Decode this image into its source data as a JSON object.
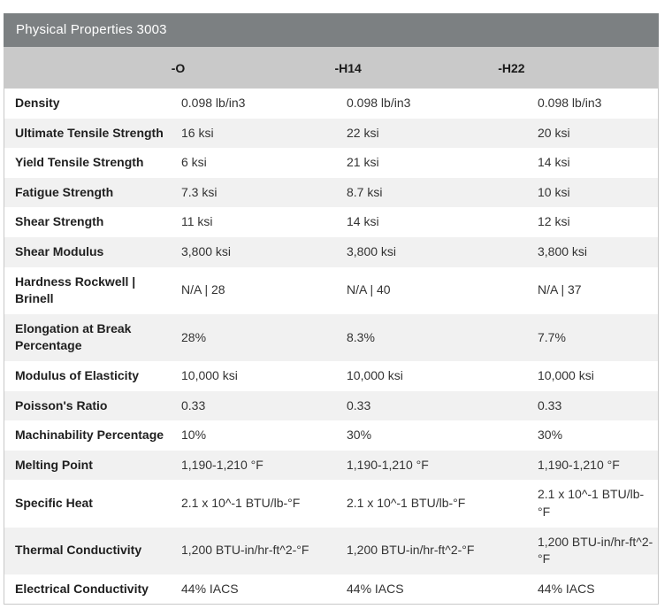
{
  "table": {
    "title": "Physical Properties 3003",
    "columns": [
      "",
      "-O",
      "-H14",
      "-H22"
    ],
    "rows": [
      {
        "label": "Density",
        "values": [
          "0.098 lb/in3",
          "0.098 lb/in3",
          "0.098 lb/in3"
        ]
      },
      {
        "label": "Ultimate Tensile Strength",
        "values": [
          "16 ksi",
          "22 ksi",
          "20 ksi"
        ]
      },
      {
        "label": "Yield Tensile Strength",
        "values": [
          "6 ksi",
          "21 ksi",
          "14 ksi"
        ]
      },
      {
        "label": "Fatigue Strength",
        "values": [
          "7.3 ksi",
          "8.7 ksi",
          "10 ksi"
        ]
      },
      {
        "label": "Shear Strength",
        "values": [
          "11 ksi",
          "14 ksi",
          "12 ksi"
        ]
      },
      {
        "label": "Shear Modulus",
        "values": [
          "3,800 ksi",
          "3,800 ksi",
          "3,800 ksi"
        ]
      },
      {
        "label": "Hardness Rockwell | Brinell",
        "values": [
          "N/A | 28",
          "N/A | 40",
          "N/A | 37"
        ]
      },
      {
        "label": "Elongation at Break Percentage",
        "values": [
          "28%",
          "8.3%",
          "7.7%"
        ]
      },
      {
        "label": "Modulus of Elasticity",
        "values": [
          "10,000 ksi",
          "10,000 ksi",
          "10,000 ksi"
        ]
      },
      {
        "label": "Poisson's Ratio",
        "values": [
          "0.33",
          "0.33",
          "0.33"
        ]
      },
      {
        "label": "Machinability Percentage",
        "values": [
          "10%",
          "30%",
          "30%"
        ]
      },
      {
        "label": "Melting Point",
        "values": [
          "1,190-1,210 °F",
          "1,190-1,210 °F",
          "1,190-1,210 °F"
        ]
      },
      {
        "label": "Specific Heat",
        "values": [
          "2.1 x 10^-1 BTU/lb-°F",
          "2.1 x 10^-1 BTU/lb-°F",
          "2.1 x 10^-1 BTU/lb-°F"
        ]
      },
      {
        "label": "Thermal Conductivity",
        "values": [
          "1,200 BTU-in/hr-ft^2-°F",
          "1,200 BTU-in/hr-ft^2-°F",
          "1,200 BTU-in/hr-ft^2-°F"
        ]
      },
      {
        "label": "Electrical Conductivity",
        "values": [
          "44% IACS",
          "44% IACS",
          "44% IACS"
        ]
      }
    ]
  },
  "colors": {
    "title_bar_bg": "#7c8082",
    "title_text": "#ffffff",
    "header_bg": "#c9c9c9",
    "alt_row_bg": "#f1f1f1",
    "row_bg": "#ffffff",
    "border": "#c8c8c8",
    "label_text": "#1f1f1f",
    "value_text": "#333333"
  }
}
